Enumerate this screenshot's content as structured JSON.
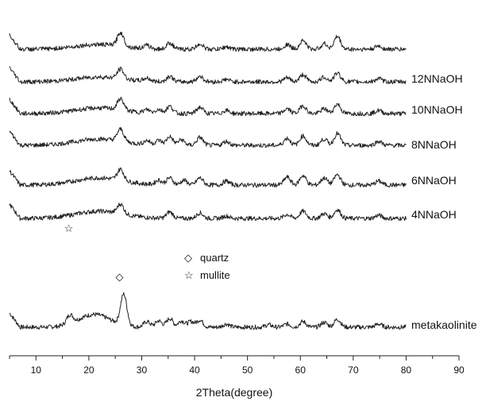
{
  "chart_data": {
    "type": "line",
    "title": "",
    "xlabel": "2Theta(degree)",
    "ylabel": "",
    "xlim": [
      5,
      90
    ],
    "x_ticks": [
      10,
      20,
      30,
      40,
      50,
      60,
      70,
      80,
      90
    ],
    "y_ticks_shown": false,
    "grid": false,
    "stacked_offset": true,
    "x_range": [
      5,
      80
    ],
    "series": [
      {
        "label": "metakaolinite",
        "peaks": [
          {
            "x": 16.4,
            "h": 0.55
          },
          {
            "x": 21.0,
            "h": 0.8,
            "w": 3.0
          },
          {
            "x": 26.6,
            "h": 1.95
          },
          {
            "x": 31.0,
            "h": 0.35
          },
          {
            "x": 33.2,
            "h": 0.4
          },
          {
            "x": 35.3,
            "h": 0.55
          },
          {
            "x": 37.5,
            "h": 0.4
          },
          {
            "x": 39.3,
            "h": 0.35
          },
          {
            "x": 41.0,
            "h": 0.45
          },
          {
            "x": 46.0,
            "h": 0.2
          },
          {
            "x": 54.0,
            "h": 0.15
          },
          {
            "x": 57.5,
            "h": 0.2
          },
          {
            "x": 60.5,
            "h": 0.35
          },
          {
            "x": 64.5,
            "h": 0.3
          },
          {
            "x": 67.0,
            "h": 0.5
          },
          {
            "x": 74.8,
            "h": 0.2
          }
        ]
      },
      {
        "label": "4NNaOH",
        "peaks": [
          {
            "x": 22.0,
            "h": 0.45,
            "w": 4.5
          },
          {
            "x": 26.0,
            "h": 0.6
          },
          {
            "x": 35.3,
            "h": 0.4
          },
          {
            "x": 41.0,
            "h": 0.35
          },
          {
            "x": 46.0,
            "h": 0.15
          },
          {
            "x": 57.5,
            "h": 0.25
          },
          {
            "x": 60.5,
            "h": 0.45
          },
          {
            "x": 64.5,
            "h": 0.3
          },
          {
            "x": 67.0,
            "h": 0.55
          },
          {
            "x": 74.8,
            "h": 0.2
          }
        ]
      },
      {
        "label": "6NNaOH",
        "peaks": [
          {
            "x": 22.0,
            "h": 0.45,
            "w": 4.5
          },
          {
            "x": 26.0,
            "h": 0.7
          },
          {
            "x": 33.2,
            "h": 0.3
          },
          {
            "x": 35.3,
            "h": 0.45
          },
          {
            "x": 38.0,
            "h": 0.3
          },
          {
            "x": 41.0,
            "h": 0.45
          },
          {
            "x": 46.0,
            "h": 0.25
          },
          {
            "x": 57.5,
            "h": 0.5
          },
          {
            "x": 60.5,
            "h": 0.6
          },
          {
            "x": 64.5,
            "h": 0.45
          },
          {
            "x": 67.0,
            "h": 0.65
          },
          {
            "x": 74.8,
            "h": 0.25
          }
        ]
      },
      {
        "label": "8NNaOH",
        "peaks": [
          {
            "x": 22.0,
            "h": 0.4,
            "w": 4.5
          },
          {
            "x": 26.0,
            "h": 0.75
          },
          {
            "x": 31.0,
            "h": 0.25
          },
          {
            "x": 33.2,
            "h": 0.3
          },
          {
            "x": 35.3,
            "h": 0.55
          },
          {
            "x": 37.5,
            "h": 0.35
          },
          {
            "x": 41.0,
            "h": 0.5
          },
          {
            "x": 46.0,
            "h": 0.25
          },
          {
            "x": 57.5,
            "h": 0.45
          },
          {
            "x": 60.5,
            "h": 0.6
          },
          {
            "x": 64.5,
            "h": 0.4
          },
          {
            "x": 67.0,
            "h": 0.75
          },
          {
            "x": 74.8,
            "h": 0.25
          }
        ]
      },
      {
        "label": "10NNaOH",
        "peaks": [
          {
            "x": 22.0,
            "h": 0.35,
            "w": 4.5
          },
          {
            "x": 26.0,
            "h": 0.7
          },
          {
            "x": 31.0,
            "h": 0.2
          },
          {
            "x": 33.2,
            "h": 0.25
          },
          {
            "x": 35.3,
            "h": 0.45
          },
          {
            "x": 41.0,
            "h": 0.4
          },
          {
            "x": 46.0,
            "h": 0.2
          },
          {
            "x": 57.5,
            "h": 0.3
          },
          {
            "x": 60.5,
            "h": 0.5
          },
          {
            "x": 64.5,
            "h": 0.3
          },
          {
            "x": 67.0,
            "h": 0.6
          },
          {
            "x": 74.8,
            "h": 0.2
          }
        ]
      },
      {
        "label": "12NNaOH",
        "peaks": [
          {
            "x": 22.0,
            "h": 0.3,
            "w": 4.5
          },
          {
            "x": 26.0,
            "h": 0.6
          },
          {
            "x": 31.0,
            "h": 0.2
          },
          {
            "x": 35.3,
            "h": 0.35
          },
          {
            "x": 41.0,
            "h": 0.35
          },
          {
            "x": 46.0,
            "h": 0.15
          },
          {
            "x": 57.5,
            "h": 0.25
          },
          {
            "x": 60.5,
            "h": 0.45
          },
          {
            "x": 64.5,
            "h": 0.3
          },
          {
            "x": 67.0,
            "h": 0.55
          },
          {
            "x": 74.8,
            "h": 0.2
          }
        ]
      },
      {
        "label": "",
        "peaks": [
          {
            "x": 22.0,
            "h": 0.3,
            "w": 4.5
          },
          {
            "x": 26.0,
            "h": 0.85
          },
          {
            "x": 31.0,
            "h": 0.2
          },
          {
            "x": 35.3,
            "h": 0.4
          },
          {
            "x": 41.0,
            "h": 0.35
          },
          {
            "x": 46.0,
            "h": 0.15
          },
          {
            "x": 57.5,
            "h": 0.3
          },
          {
            "x": 60.5,
            "h": 0.55
          },
          {
            "x": 64.5,
            "h": 0.35
          },
          {
            "x": 67.0,
            "h": 0.8
          },
          {
            "x": 74.8,
            "h": 0.2
          }
        ]
      }
    ],
    "annotations": [
      {
        "symbol": "◇",
        "meaning": "quartz",
        "at_x": 25.8
      },
      {
        "symbol": "☆",
        "meaning": "mullite",
        "at_x": 16.2
      }
    ],
    "legend": {
      "placement": "center",
      "entries": [
        {
          "symbol": "◇",
          "label": "quartz"
        },
        {
          "symbol": "☆",
          "label": "mullite"
        }
      ]
    }
  }
}
